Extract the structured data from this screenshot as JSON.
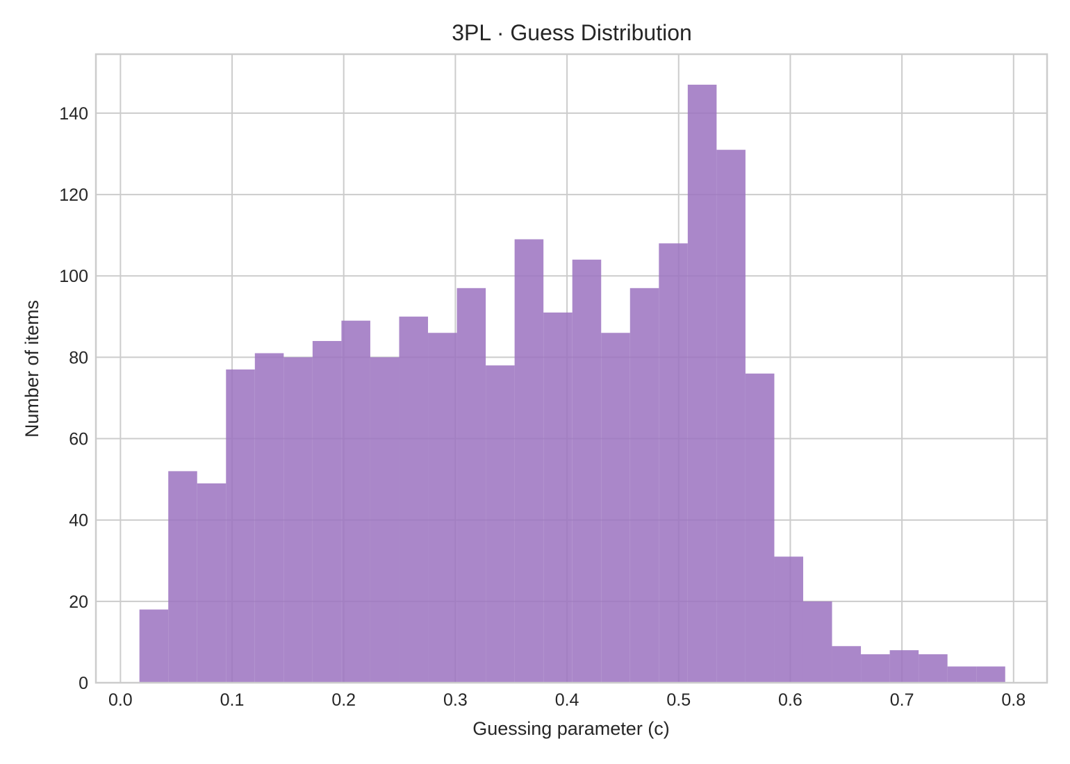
{
  "chart_data": {
    "type": "bar",
    "title": "3PL · Guess Distribution",
    "xlabel": "Guessing parameter (c)",
    "ylabel": "Number of items",
    "xlim": [
      -0.022,
      0.83
    ],
    "ylim": [
      0,
      154.5
    ],
    "xticks": [
      0.0,
      0.1,
      0.2,
      0.3,
      0.4,
      0.5,
      0.6,
      0.7,
      0.8
    ],
    "xtick_labels": [
      "0.0",
      "0.1",
      "0.2",
      "0.3",
      "0.4",
      "0.5",
      "0.6",
      "0.7",
      "0.8"
    ],
    "yticks": [
      0,
      20,
      40,
      60,
      80,
      100,
      120,
      140
    ],
    "ytick_labels": [
      "0",
      "20",
      "40",
      "60",
      "80",
      "100",
      "120",
      "140"
    ],
    "grid": true,
    "bar_color": "#9b72c0",
    "bar_opacity": 0.85,
    "bin_start": 0.017,
    "bin_width": 0.02585,
    "values": [
      18,
      52,
      49,
      77,
      81,
      80,
      84,
      89,
      80,
      90,
      86,
      97,
      78,
      109,
      91,
      104,
      86,
      97,
      108,
      147,
      131,
      76,
      31,
      20,
      9,
      7,
      8,
      7,
      4,
      4
    ]
  }
}
